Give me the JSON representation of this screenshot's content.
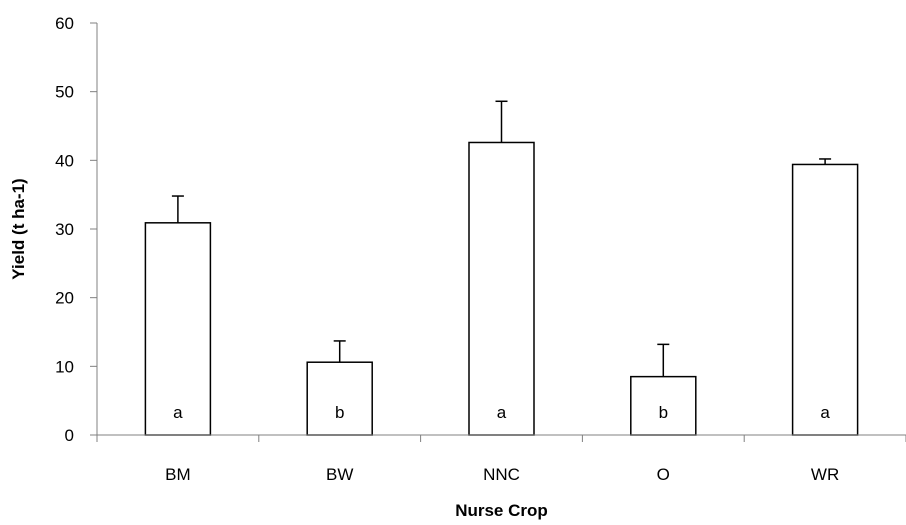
{
  "chart_data": {
    "type": "bar",
    "title": "",
    "xlabel": "Nurse Crop",
    "ylabel": "Yield (t ha-1)",
    "ylim": [
      0,
      60
    ],
    "yticks": [
      0,
      10,
      20,
      30,
      40,
      50,
      60
    ],
    "categories": [
      "BM",
      "BW",
      "NNC",
      "O",
      "WR"
    ],
    "values": [
      30.9,
      10.6,
      42.6,
      8.5,
      39.4
    ],
    "error": [
      3.9,
      3.1,
      6.0,
      4.7,
      0.8
    ],
    "group_labels": [
      "a",
      "b",
      "a",
      "b",
      "a"
    ],
    "bar_fill": "#ffffff",
    "bar_stroke": "#000000",
    "grid": false,
    "legend": "none"
  }
}
